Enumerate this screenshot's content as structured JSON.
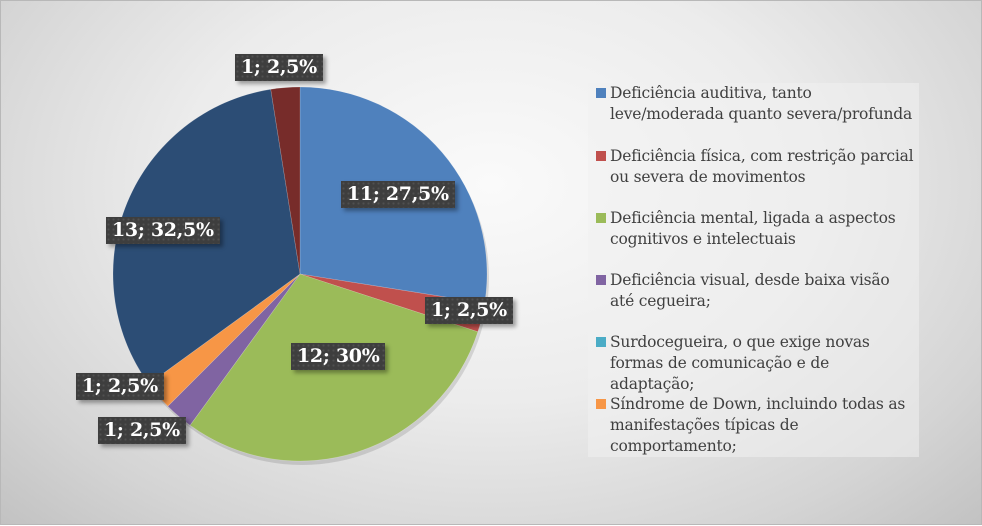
{
  "chart_data": {
    "type": "pie",
    "title": "",
    "start_angle_deg": 0,
    "direction": "clockwise",
    "legend_position": "right",
    "slices": [
      {
        "label": "Deficiência auditiva, tanto leve/moderada quanto severa/profunda",
        "value": 11,
        "percent": 27.5,
        "data_label": "11; 27,5%",
        "color": "#4f81bd"
      },
      {
        "label": "Deficiência física, com restrição parcial ou severa de movimentos",
        "value": 1,
        "percent": 2.5,
        "data_label": "1; 2,5%",
        "color": "#c0504d"
      },
      {
        "label": "Deficiência mental, ligada a aspectos cognitivos e intelectuais",
        "value": 12,
        "percent": 30,
        "data_label": "12; 30%",
        "color": "#9bbb59"
      },
      {
        "label": "Deficiência visual, desde baixa visão até cegueira;",
        "value": 1,
        "percent": 2.5,
        "data_label": "1; 2,5%",
        "color": "#8064a2"
      },
      {
        "label": "Surdocegueira, o que exige novas formas de comunicação e de adaptação;",
        "value": 0,
        "percent": 0,
        "data_label": "",
        "color": "#4bacc6"
      },
      {
        "label": "Síndrome de Down, incluindo todas as manifestações típicas de comportamento;",
        "value": 1,
        "percent": 2.5,
        "data_label": "1; 2,5%",
        "color": "#f79646"
      },
      {
        "label": "",
        "value": 13,
        "percent": 32.5,
        "data_label": "13; 32,5%",
        "color": "#2c4d75"
      },
      {
        "label": "",
        "value": 1,
        "percent": 2.5,
        "data_label": "1; 2,5%",
        "color": "#772c2a"
      }
    ]
  },
  "legend": {
    "items": [
      {
        "text": "Deficiência auditiva, tanto leve/moderada quanto severa/profunda",
        "color": "#4f81bd"
      },
      {
        "text": "Deficiência física, com restrição parcial ou severa de movimentos",
        "color": "#c0504d"
      },
      {
        "text": "Deficiência mental, ligada a aspectos cognitivos e intelectuais",
        "color": "#9bbb59"
      },
      {
        "text": "Deficiência visual, desde baixa visão até cegueira;",
        "color": "#8064a2"
      },
      {
        "text": "Surdocegueira, o que exige novas formas de comunicação e de adaptação;",
        "color": "#4bacc6"
      },
      {
        "text": "Síndrome de Down, incluindo todas as manifestações típicas de comportamento;",
        "color": "#f79646"
      }
    ]
  }
}
